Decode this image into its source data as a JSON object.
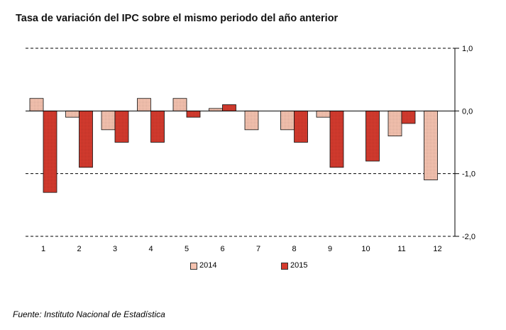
{
  "title": "Tasa de variación del IPC sobre el mismo periodo del año anterior",
  "source": "Fuente: Instituto Nacional de Estadística",
  "colors": {
    "s2014": "#f6c3b0",
    "s2015": "#d63b2e",
    "axis": "#000000"
  },
  "chart_data": {
    "type": "bar",
    "title": "Tasa de variación del IPC sobre el mismo periodo del año anterior",
    "categories": [
      "1",
      "2",
      "3",
      "4",
      "5",
      "6",
      "7",
      "8",
      "9",
      "10",
      "11",
      "12"
    ],
    "series": [
      {
        "name": "2014",
        "values": [
          0.2,
          -0.1,
          -0.3,
          0.2,
          0.2,
          0.04,
          -0.3,
          -0.3,
          -0.1,
          null,
          -0.4,
          -1.1
        ]
      },
      {
        "name": "2015",
        "values": [
          -1.3,
          -0.9,
          -0.5,
          -0.5,
          -0.1,
          0.1,
          null,
          -0.5,
          -0.9,
          -0.8,
          -0.2,
          null
        ]
      }
    ],
    "yticks": [
      "1,0",
      "0,0",
      "-1,0",
      "-2,0"
    ],
    "ylim": [
      -2.0,
      1.0
    ],
    "grid": true,
    "legend": [
      "2014",
      "2015"
    ],
    "legend_position": "bottom"
  },
  "legend": {
    "label_2014": "2014",
    "label_2015": "2015"
  }
}
